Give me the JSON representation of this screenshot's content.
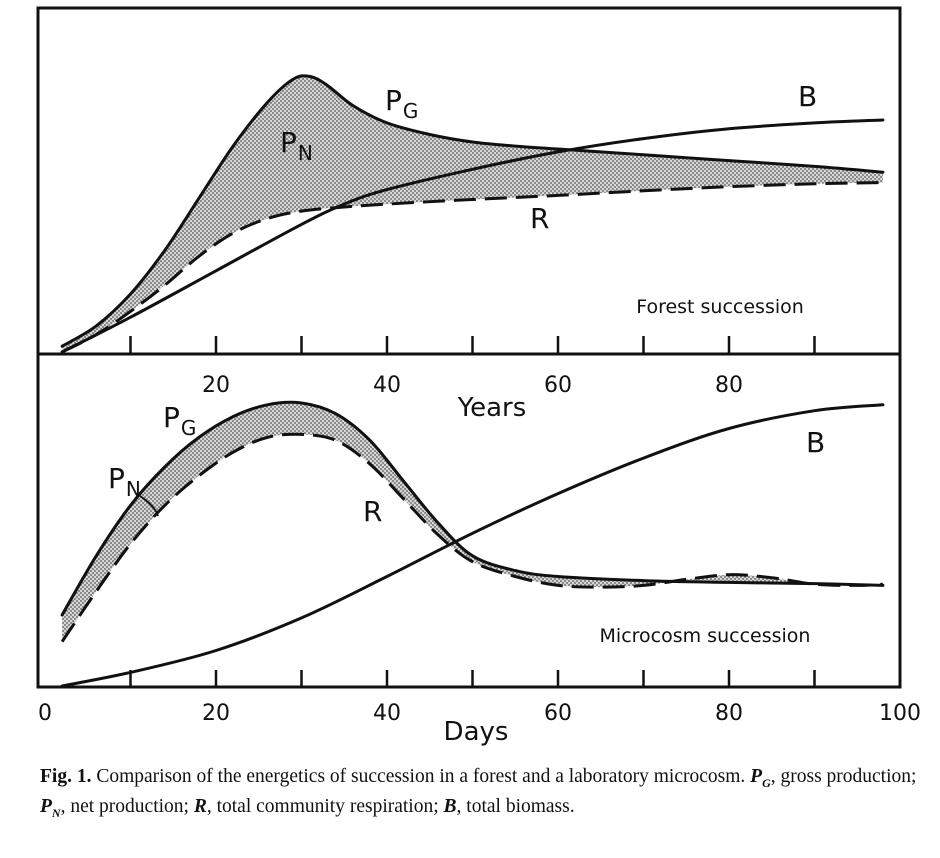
{
  "chart_data": [
    {
      "type": "area",
      "panel_label": "Forest succession",
      "xlabel": "Years",
      "xlim": [
        0,
        100
      ],
      "x_ticks": [
        20,
        40,
        60,
        80
      ],
      "curve_labels": {
        "PG_main": "P",
        "PG_sub": "G",
        "PN_main": "P",
        "PN_sub": "N",
        "B": "B",
        "R": "R"
      },
      "series": [
        {
          "name": "PG",
          "style": "solid",
          "x": [
            2,
            6,
            10,
            14,
            18,
            22,
            26,
            29,
            31,
            33,
            36,
            40,
            45,
            50,
            55,
            60,
            70,
            80,
            90,
            98
          ],
          "y": [
            1.0,
            4.5,
            10.0,
            17.5,
            26.5,
            35.5,
            43.0,
            47.0,
            47.5,
            46.0,
            42.5,
            39.5,
            37.5,
            36.2,
            35.5,
            35.0,
            34.0,
            33.0,
            32.0,
            31.0
          ]
        },
        {
          "name": "R",
          "style": "dashed",
          "x": [
            2,
            6,
            10,
            14,
            18,
            22,
            26,
            30,
            35,
            40,
            50,
            60,
            70,
            80,
            90,
            98
          ],
          "y": [
            0.0,
            3.0,
            7.0,
            11.5,
            16.5,
            20.5,
            23.0,
            24.3,
            25.0,
            25.5,
            26.3,
            27.0,
            27.8,
            28.5,
            29.0,
            29.2
          ]
        },
        {
          "name": "B",
          "style": "solid",
          "x": [
            2,
            10,
            20,
            30,
            35,
            40,
            50,
            60,
            70,
            80,
            90,
            98
          ],
          "y": [
            0.0,
            6.0,
            14.0,
            22.0,
            25.5,
            28.0,
            31.5,
            34.5,
            36.8,
            38.5,
            39.5,
            40.0
          ]
        }
      ],
      "shaded_region": "between PG and R (PN)"
    },
    {
      "type": "area",
      "panel_label": "Microcosm succession",
      "xlabel": "Days",
      "xlim": [
        0,
        100
      ],
      "x_ticks": [
        0,
        20,
        40,
        60,
        80,
        100
      ],
      "curve_labels": {
        "PG_main": "P",
        "PG_sub": "G",
        "PN_main": "P",
        "PN_sub": "N",
        "B": "B",
        "R": "R"
      },
      "series": [
        {
          "name": "PG",
          "style": "solid",
          "x": [
            2,
            6,
            10,
            14,
            18,
            22,
            26,
            30,
            34,
            38,
            42,
            46,
            50,
            55,
            60,
            70,
            80,
            90,
            98
          ],
          "y": [
            12.0,
            22.0,
            30.5,
            37.0,
            42.0,
            45.5,
            47.5,
            47.8,
            46.0,
            41.5,
            34.5,
            27.5,
            22.0,
            19.5,
            18.5,
            17.8,
            17.5,
            17.3,
            17.0
          ]
        },
        {
          "name": "R",
          "style": "dashed",
          "x": [
            2,
            6,
            10,
            14,
            18,
            22,
            26,
            30,
            34,
            38,
            42,
            46,
            50,
            55,
            60,
            65,
            70,
            75,
            80,
            85,
            90,
            95,
            98
          ],
          "y": [
            7.5,
            16.0,
            24.0,
            30.5,
            35.5,
            39.5,
            42.0,
            42.5,
            41.5,
            37.5,
            31.5,
            25.5,
            21.0,
            18.5,
            17.0,
            16.7,
            17.0,
            18.0,
            18.8,
            18.3,
            17.2,
            17.0,
            17.2
          ]
        },
        {
          "name": "B",
          "style": "solid",
          "x": [
            2,
            10,
            20,
            30,
            40,
            50,
            60,
            70,
            80,
            90,
            98
          ],
          "y": [
            0.0,
            2.3,
            6.0,
            11.5,
            18.5,
            25.8,
            32.5,
            38.5,
            43.5,
            46.5,
            47.5
          ]
        }
      ],
      "shaded_region": "between PG and R (PN)"
    }
  ],
  "caption": {
    "label": "Fig. 1.",
    "text": " Comparison of the energetics of succession in a forest and a laboratory microcosm. ",
    "terms": [
      {
        "sym": "P",
        "sub": "G",
        "desc": ", gross production; "
      },
      {
        "sym": "P",
        "sub": "N",
        "desc": ", net production; "
      },
      {
        "sym": "R",
        "sub": "",
        "desc": ", total community respiration; "
      },
      {
        "sym": "B",
        "sub": "",
        "desc": ", total biomass."
      }
    ]
  }
}
